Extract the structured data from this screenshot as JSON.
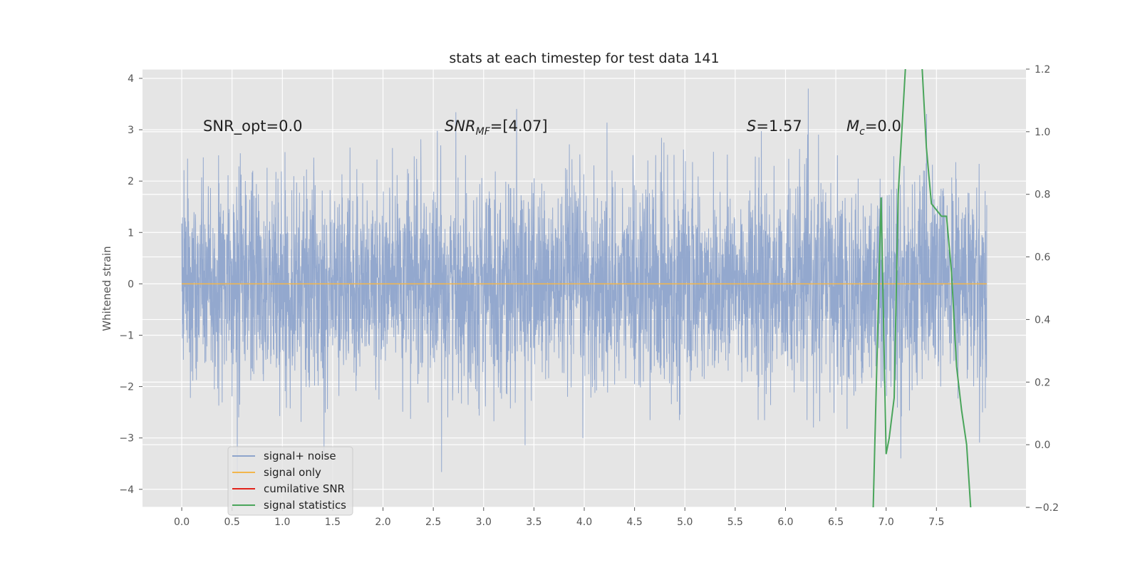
{
  "chart_data": {
    "type": "line",
    "title": "stats at each timestep for test data 141",
    "xlabel": "",
    "ylabel": "Whitened strain",
    "y2label": "",
    "xlim": [
      -0.39,
      8.39
    ],
    "ylim": [
      -4.35,
      4.18
    ],
    "y2lim": [
      -0.2,
      1.2
    ],
    "xticks": [
      "0.0",
      "0.5",
      "1.0",
      "1.5",
      "2.0",
      "2.5",
      "3.0",
      "3.5",
      "4.0",
      "4.5",
      "5.0",
      "5.5",
      "6.0",
      "6.5",
      "7.0",
      "7.5"
    ],
    "yticks": [
      "−4",
      "−3",
      "−2",
      "−1",
      "0",
      "1",
      "2",
      "3",
      "4"
    ],
    "y2ticks": [
      "−0.2",
      "0.0",
      "0.2",
      "0.4",
      "0.6",
      "0.8",
      "1.0",
      "1.2"
    ],
    "grid": true,
    "legend_position": "lower-left",
    "colors": {
      "noise": "#8ea4cc",
      "signal": "#f2b64c",
      "cumulative": "#e2231a",
      "stats": "#4aa55b",
      "axes_bg": "#e5e5e5",
      "grid": "#ffffff"
    },
    "annotations": [
      {
        "label": "SNR_opt=0.0",
        "x": 0.2,
        "y": 3.0
      },
      {
        "label_main": "SNR",
        "label_sub": "MF",
        "label_rest": "=[4.07]",
        "x": 2.6,
        "y": 3.0
      },
      {
        "label_main": "S",
        "label_rest": "=1.57",
        "x": 5.6,
        "y": 3.0
      },
      {
        "label_main": "M",
        "label_sub": "c",
        "label_rest": "=0.0",
        "x": 6.6,
        "y": 3.0
      }
    ],
    "series": [
      {
        "name": "signal+ noise",
        "axis": "left",
        "x_range": [
          0.0,
          8.0
        ],
        "description_values": "dense noise, amplitude ~±2 with spikes to about ±3.8"
      },
      {
        "name": "signal only",
        "axis": "left",
        "x": [
          0.0,
          8.0
        ],
        "y": [
          0.0,
          0.0
        ]
      },
      {
        "name": "cumilative SNR",
        "axis": "right",
        "x": [],
        "y": []
      },
      {
        "name": "signal statistics",
        "axis": "right",
        "x": [
          6.87,
          6.95,
          7.0,
          7.03,
          7.08,
          7.12,
          7.2,
          7.25,
          7.35,
          7.4,
          7.45,
          7.55,
          7.6,
          7.65,
          7.7,
          7.75,
          7.8,
          7.85
        ],
        "y": [
          -0.22,
          0.79,
          -0.03,
          0.02,
          0.15,
          0.8,
          1.25,
          1.35,
          1.25,
          0.95,
          0.77,
          0.73,
          0.73,
          0.55,
          0.25,
          0.11,
          0.0,
          -0.25
        ]
      }
    ]
  }
}
